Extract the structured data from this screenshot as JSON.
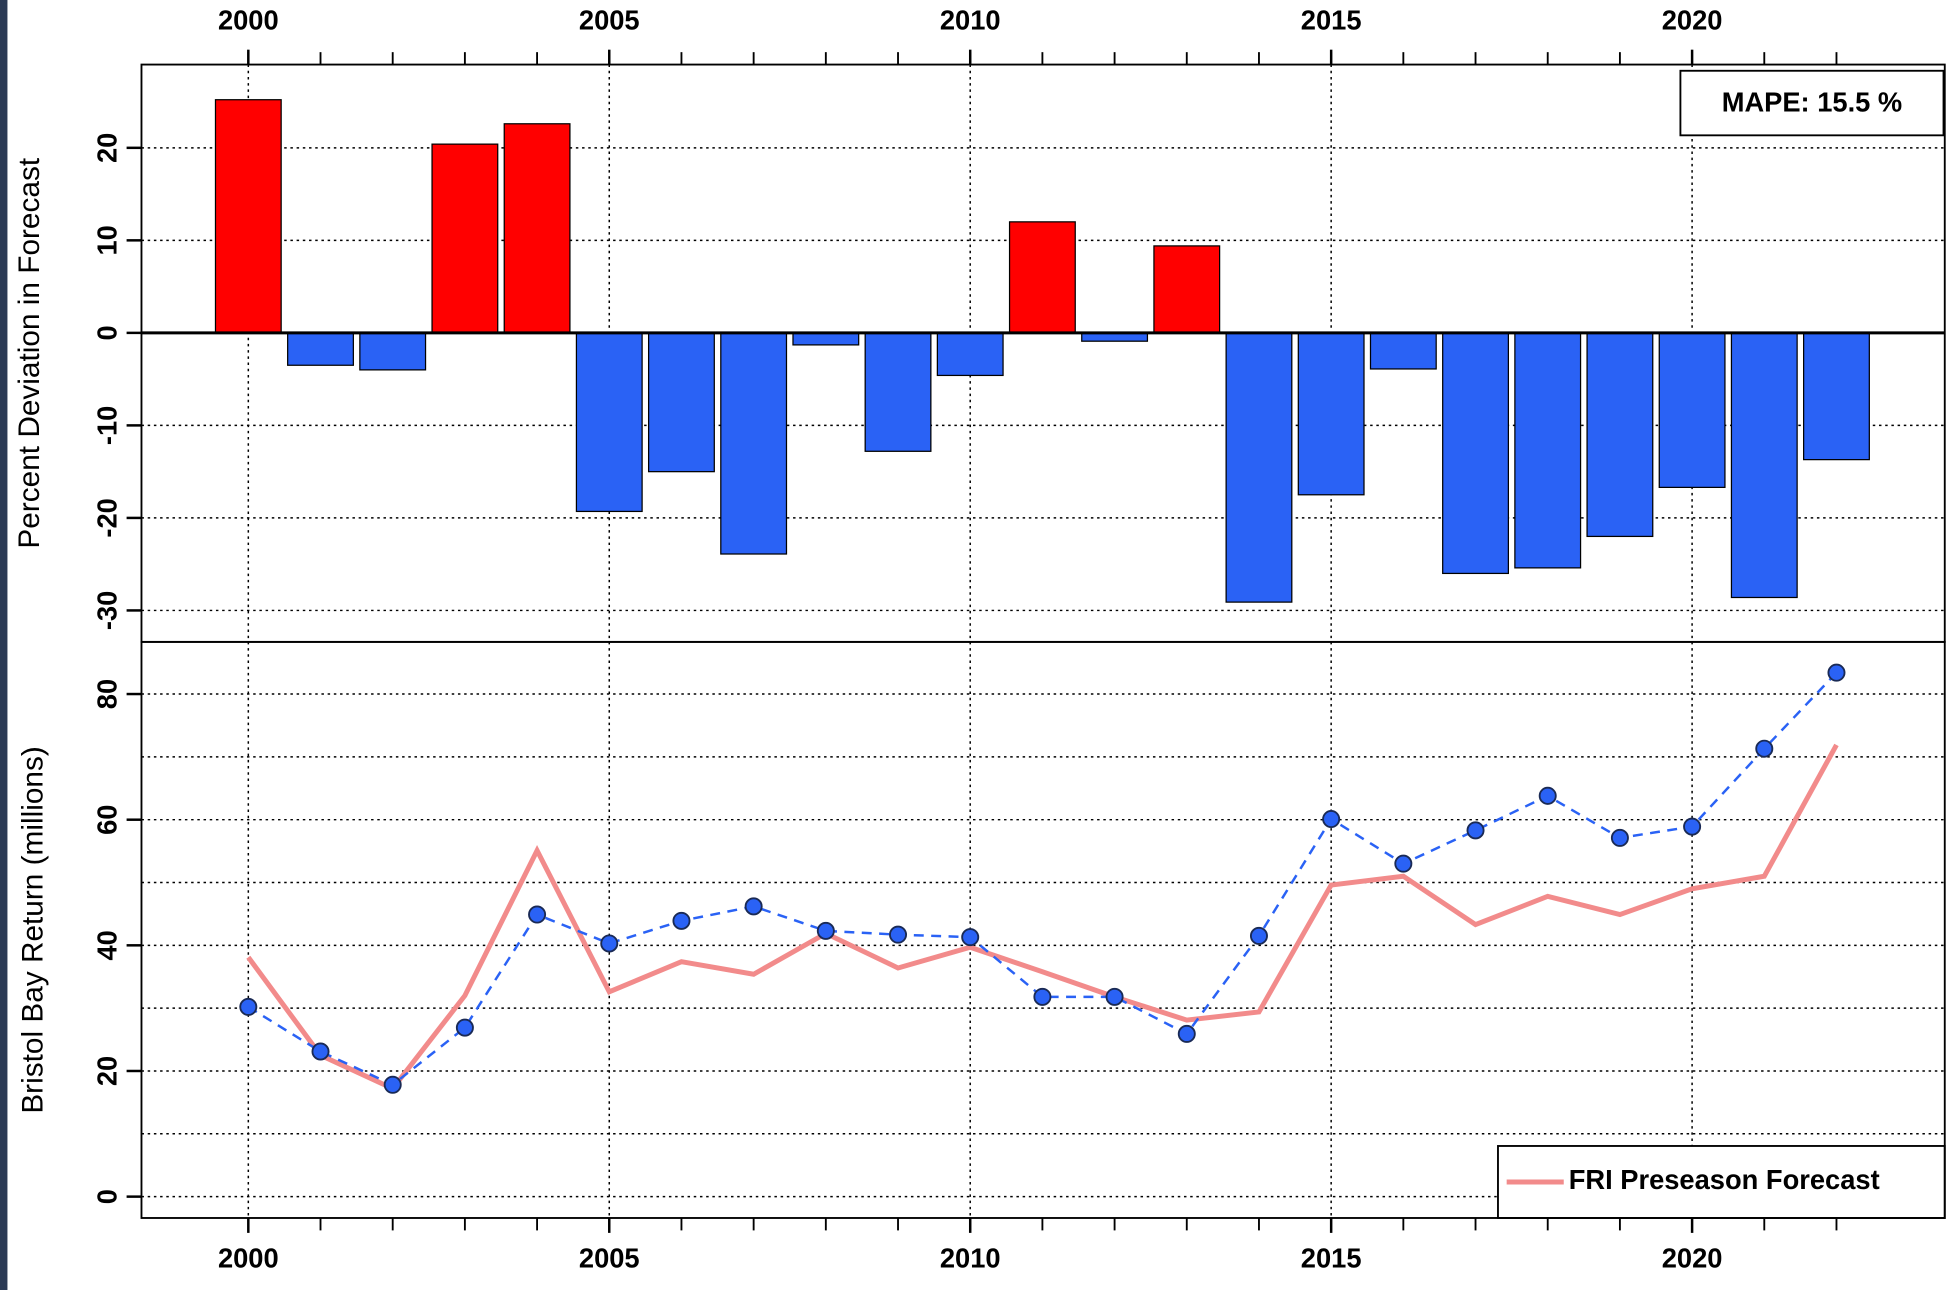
{
  "chart_data": [
    {
      "type": "bar",
      "x": [
        2000,
        2001,
        2002,
        2003,
        2004,
        2005,
        2006,
        2007,
        2008,
        2009,
        2010,
        2011,
        2012,
        2013,
        2014,
        2015,
        2016,
        2017,
        2018,
        2019,
        2020,
        2021,
        2022
      ],
      "values": [
        25.2,
        -3.5,
        -4.0,
        20.4,
        22.6,
        -19.3,
        -15.0,
        -23.9,
        -1.3,
        -12.8,
        -4.6,
        12.0,
        -0.9,
        9.4,
        -29.1,
        -17.5,
        -3.9,
        -26.0,
        -25.4,
        -22.0,
        -16.7,
        -28.6,
        -13.7
      ],
      "positive_color": "#ff0000",
      "negative_color": "#2a62f5",
      "ylabel": "Percent Deviation in Forecast",
      "annotation": "MAPE: 15.5 %",
      "xlim": [
        1998.52,
        2023.5
      ],
      "xticks": [
        2000,
        2005,
        2010,
        2015,
        2020
      ],
      "xtick_side": "top",
      "ylim": [
        -33.4,
        29
      ],
      "yticks": [
        -30,
        -20,
        -10,
        0,
        10,
        20
      ],
      "grid": true
    },
    {
      "type": "line",
      "x": [
        2000,
        2001,
        2002,
        2003,
        2004,
        2005,
        2006,
        2007,
        2008,
        2009,
        2010,
        2011,
        2012,
        2013,
        2014,
        2015,
        2016,
        2017,
        2018,
        2019,
        2020,
        2021,
        2022
      ],
      "series": [
        {
          "color": "#2a62f5",
          "style": "dashed-points",
          "values": [
            30.2,
            23.1,
            17.8,
            26.9,
            44.9,
            40.3,
            43.9,
            46.2,
            42.3,
            41.7,
            41.3,
            31.8,
            31.8,
            25.9,
            41.5,
            60.1,
            53.0,
            58.3,
            63.8,
            57.1,
            58.9,
            71.3,
            83.4
          ]
        },
        {
          "name": "FRI Preseason Forecast",
          "color": "#f28b8b",
          "style": "solid",
          "values": [
            38.1,
            22.5,
            17.2,
            32.0,
            55.1,
            32.6,
            37.4,
            35.4,
            41.9,
            36.4,
            39.7,
            35.8,
            31.8,
            28.1,
            29.4,
            49.6,
            51.0,
            43.3,
            47.8,
            44.9,
            49.0,
            51.0,
            71.9
          ]
        }
      ],
      "ylabel": "Bristol Bay Return (millions)",
      "xlim": [
        1998.52,
        2023.5
      ],
      "xticks": [
        2000,
        2005,
        2010,
        2015,
        2020
      ],
      "xtick_side": "bottom",
      "ylim": [
        -3.4,
        88.3
      ],
      "yticks": [
        0,
        20,
        40,
        60,
        80
      ],
      "minor_grid": [
        10,
        30,
        50,
        70
      ],
      "grid": true,
      "legend": "lower right"
    }
  ]
}
